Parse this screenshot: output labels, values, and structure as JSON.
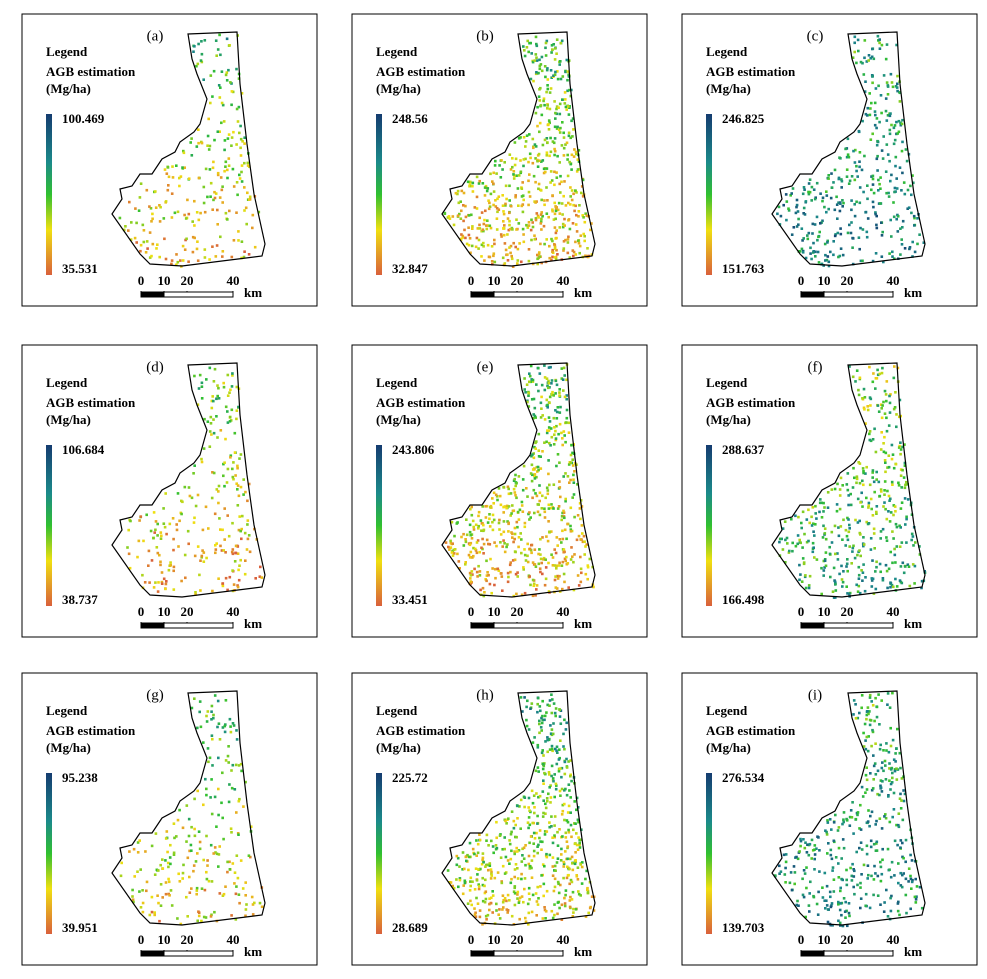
{
  "panels": [
    {
      "label": "(a)",
      "legend_title": "Legend",
      "variable": "AGB estimation",
      "unit": "(Mg/ha)",
      "max": 100.469,
      "min": 35.531,
      "scale_ticks": [
        0,
        10,
        20,
        40
      ],
      "scale_unit": "km"
    },
    {
      "label": "(b)",
      "legend_title": "Legend",
      "variable": "AGB estimation",
      "unit": "(Mg/ha)",
      "max": 248.56,
      "min": 32.847,
      "scale_ticks": [
        0,
        10,
        20,
        40
      ],
      "scale_unit": "km"
    },
    {
      "label": "(c)",
      "legend_title": "Legend",
      "variable": "AGB estimation",
      "unit": "(Mg/ha)",
      "max": 246.825,
      "min": 151.763,
      "scale_ticks": [
        0,
        10,
        20,
        40
      ],
      "scale_unit": "km"
    },
    {
      "label": "(d)",
      "legend_title": "Legend",
      "variable": "AGB estimation",
      "unit": "(Mg/ha)",
      "max": 106.684,
      "min": 38.737,
      "scale_ticks": [
        0,
        10,
        20,
        40
      ],
      "scale_unit": "km"
    },
    {
      "label": "(e)",
      "legend_title": "Legend",
      "variable": "AGB estimation",
      "unit": "(Mg/ha)",
      "max": 243.806,
      "min": 33.451,
      "scale_ticks": [
        0,
        10,
        20,
        40
      ],
      "scale_unit": "km"
    },
    {
      "label": "(f)",
      "legend_title": "Legend",
      "variable": "AGB estimation",
      "unit": "(Mg/ha)",
      "max": 288.637,
      "min": 166.498,
      "scale_ticks": [
        0,
        10,
        20,
        40
      ],
      "scale_unit": "km"
    },
    {
      "label": "(g)",
      "legend_title": "Legend",
      "variable": "AGB estimation",
      "unit": "(Mg/ha)",
      "max": 95.238,
      "min": 39.951,
      "scale_ticks": [
        0,
        10,
        20,
        40
      ],
      "scale_unit": "km"
    },
    {
      "label": "(h)",
      "legend_title": "Legend",
      "variable": "AGB estimation",
      "unit": "(Mg/ha)",
      "max": 225.72,
      "min": 28.689,
      "scale_ticks": [
        0,
        10,
        20,
        40
      ],
      "scale_unit": "km"
    },
    {
      "label": "(i)",
      "legend_title": "Legend",
      "variable": "AGB estimation",
      "unit": "(Mg/ha)",
      "max": 276.534,
      "min": 139.703,
      "scale_ticks": [
        0,
        10,
        20,
        40
      ],
      "scale_unit": "km"
    }
  ]
}
